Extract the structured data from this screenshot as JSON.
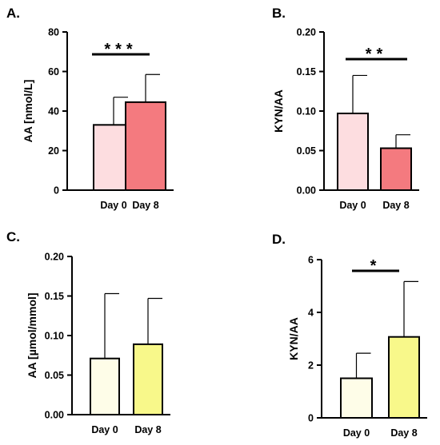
{
  "chart_data": [
    {
      "type": "bar",
      "panel": "A.",
      "categories": [
        "Day 0",
        "Day 8"
      ],
      "values": [
        33,
        44.5
      ],
      "errors": [
        14,
        14
      ],
      "ylabel": "AA [nmol/L]",
      "ylim": [
        0,
        80
      ],
      "yticks": [
        "0",
        "20",
        "40",
        "60",
        "80"
      ],
      "significance": "***",
      "bar_colors": [
        "#fddde0",
        "#f47a7f"
      ]
    },
    {
      "type": "bar",
      "panel": "B.",
      "categories": [
        "Day 0",
        "Day 8"
      ],
      "values": [
        0.097,
        0.053
      ],
      "errors": [
        0.048,
        0.017
      ],
      "ylabel": "KYN/AA",
      "ylim": [
        0,
        0.2
      ],
      "yticks": [
        "0.00",
        "0.05",
        "0.10",
        "0.15",
        "0.20"
      ],
      "significance": "**",
      "bar_colors": [
        "#fddde0",
        "#f47a7f"
      ]
    },
    {
      "type": "bar",
      "panel": "C.",
      "categories": [
        "Day 0",
        "Day 8"
      ],
      "values": [
        0.071,
        0.089
      ],
      "errors": [
        0.082,
        0.058
      ],
      "ylabel": "AA [µmol/mmol]",
      "ylim": [
        0,
        0.2
      ],
      "yticks": [
        "0.00",
        "0.05",
        "0.10",
        "0.15",
        "0.20"
      ],
      "significance": "",
      "bar_colors": [
        "#fefde8",
        "#f8f88a"
      ]
    },
    {
      "type": "bar",
      "panel": "D.",
      "categories": [
        "Day 0",
        "Day 8"
      ],
      "values": [
        1.5,
        3.07
      ],
      "errors": [
        0.95,
        2.1
      ],
      "ylabel": "KYN/AA",
      "ylim": [
        0,
        6
      ],
      "yticks": [
        "0",
        "2",
        "4",
        "6"
      ],
      "significance": "*",
      "bar_colors": [
        "#fefde8",
        "#f8f88a"
      ]
    }
  ]
}
